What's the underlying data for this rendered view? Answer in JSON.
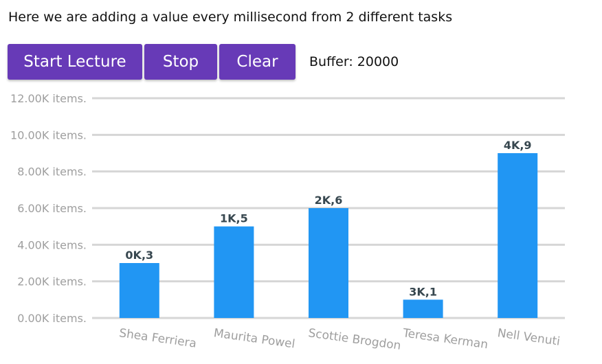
{
  "header": {
    "description": "Here we are adding a value every millisecond from 2 different tasks"
  },
  "toolbar": {
    "start_label": "Start Lecture",
    "stop_label": "Stop",
    "clear_label": "Clear",
    "buffer_text": "Buffer: 20000"
  },
  "colors": {
    "button": "#673ab7",
    "bar": "#2196f3",
    "grid": "#d6d6d6",
    "axis_text": "#9e9e9e",
    "data_label": "#37474f"
  },
  "chart_data": {
    "type": "bar",
    "categories": [
      "Shea Ferriera",
      "Maurita Powel",
      "Scottie Brogdon",
      "Teresa Kerman",
      "Nell Venuti"
    ],
    "values": [
      3000,
      5000,
      6000,
      1000,
      9000
    ],
    "data_labels": [
      "0K,3",
      "1K,5",
      "2K,6",
      "3K,1",
      "4K,9"
    ],
    "y_tick_labels": [
      "0.00K items.",
      "2.00K items.",
      "4.00K items.",
      "6.00K items.",
      "8.00K items.",
      "10.00K items.",
      "12.00K items."
    ],
    "ylim": [
      0,
      12000
    ],
    "y_step": 2000,
    "grid": true,
    "legend": "none",
    "category_label_rotation": "slanted"
  }
}
